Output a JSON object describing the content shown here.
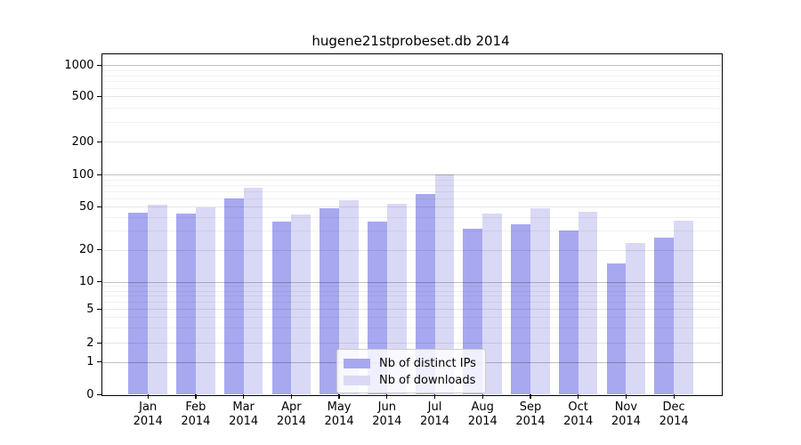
{
  "title": "hugene21stprobeset.db 2014",
  "chart_data": {
    "type": "bar",
    "title": "hugene21stprobeset.db 2014",
    "xlabel": "",
    "ylabel": "",
    "year_label": "2014",
    "categories": [
      "Jan",
      "Feb",
      "Mar",
      "Apr",
      "May",
      "Jun",
      "Jul",
      "Aug",
      "Sep",
      "Oct",
      "Nov",
      "Dec"
    ],
    "series": [
      {
        "name": "Nb of distinct IPs",
        "color": "#a8a8f0",
        "values": [
          44,
          43,
          60,
          36,
          48,
          36,
          65,
          31,
          34,
          30,
          15,
          26
        ]
      },
      {
        "name": "Nb of downloads",
        "color": "#d9d9f6",
        "values": [
          52,
          49,
          75,
          42,
          57,
          53,
          101,
          43,
          48,
          45,
          23,
          37
        ]
      }
    ],
    "yticks": [
      0,
      1,
      2,
      5,
      10,
      20,
      50,
      100,
      200,
      500,
      1000
    ],
    "scale": "log-like",
    "ylim": [
      0,
      1200
    ],
    "grid": true,
    "legend_position": "lower center"
  }
}
